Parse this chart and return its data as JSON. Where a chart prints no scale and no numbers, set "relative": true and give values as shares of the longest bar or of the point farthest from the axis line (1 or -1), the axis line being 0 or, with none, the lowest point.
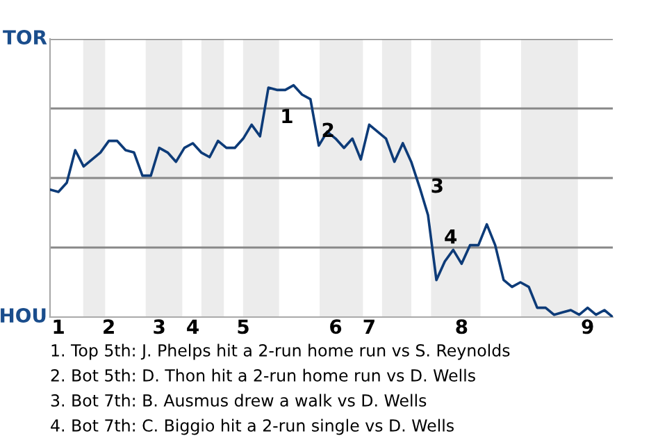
{
  "chart_data": {
    "type": "line",
    "relative": true,
    "categories": [
      null,
      "1",
      null,
      null,
      null,
      null,
      null,
      "2",
      null,
      null,
      null,
      null,
      null,
      "3",
      null,
      null,
      null,
      "4",
      null,
      null,
      null,
      null,
      null,
      "5",
      null,
      null,
      null,
      null,
      null,
      null,
      null,
      null,
      null,
      null,
      "6",
      null,
      null,
      null,
      "7",
      null,
      null,
      null,
      null,
      null,
      null,
      null,
      null,
      null,
      null,
      "8",
      null,
      null,
      null,
      null,
      null,
      null,
      null,
      null,
      null,
      null,
      null,
      null,
      null,
      null,
      "9",
      null,
      null,
      null
    ],
    "series": [
      {
        "color": "#0d3b78",
        "values": [
          0.55,
          0.54,
          0.58,
          0.72,
          0.65,
          0.68,
          0.71,
          0.76,
          0.76,
          0.72,
          0.71,
          0.61,
          0.61,
          0.73,
          0.71,
          0.67,
          0.73,
          0.75,
          0.71,
          0.69,
          0.76,
          0.73,
          0.73,
          0.77,
          0.83,
          0.78,
          0.99,
          0.98,
          0.98,
          1,
          0.96,
          0.94,
          0.74,
          0.8,
          0.77,
          0.73,
          0.77,
          0.68,
          0.83,
          0.8,
          0.77,
          0.67,
          0.75,
          0.67,
          0.56,
          0.44,
          0.16,
          0.24,
          0.29,
          0.23,
          0.31,
          0.31,
          0.4,
          0.31,
          0.16,
          0.13,
          0.15,
          0.13,
          0.04,
          0.04,
          0.01,
          0.02,
          0.03,
          0.01,
          0.04,
          0.01,
          0.03,
          0
        ]
      }
    ],
    "grid": "y",
    "marker": "none",
    "line_style": "solid",
    "annotations": [
      "TOR",
      "HOU",
      "1",
      "2",
      "3",
      "4",
      "1. Top 5th: J. Phelps hit a 2-run home run vs S. Reynolds",
      "2. Bot 5th: D. Thon hit a 2-run home run vs D. Wells",
      "3. Bot 7th: B. Ausmus drew a walk vs D. Wells",
      "4. Bot 7th: C. Biggio hit a 2-run single vs D. Wells"
    ]
  }
}
